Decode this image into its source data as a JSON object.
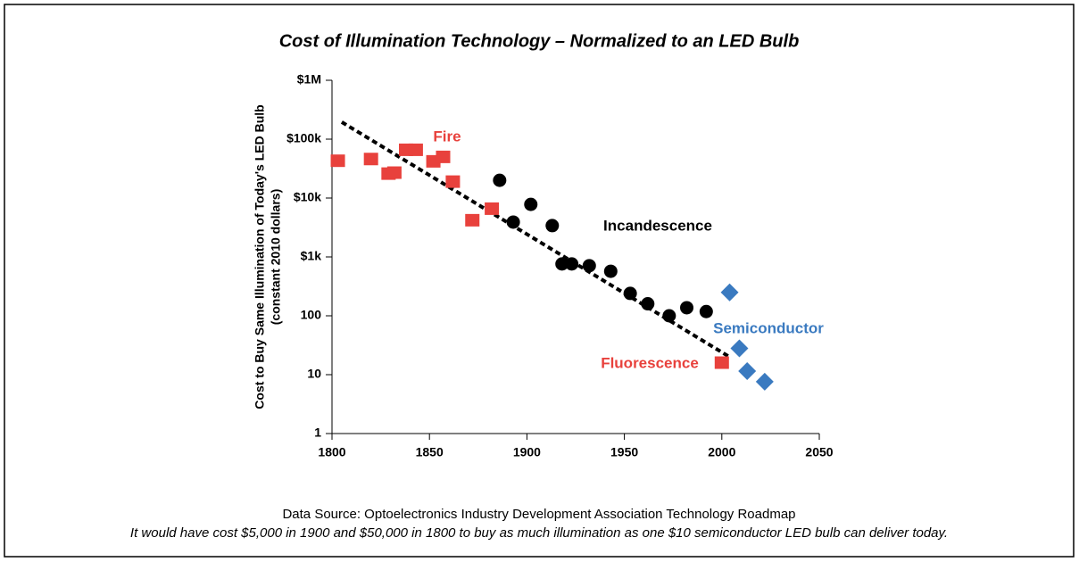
{
  "chart_data": {
    "type": "scatter",
    "title": "Cost of Illumination Technology – Normalized to an LED Bulb",
    "y_label": [
      "Cost to Buy Same Illumination of Today's LED Bulb",
      "(constant 2010 dollars)"
    ],
    "log_y": true,
    "xlim": [
      1800,
      2050
    ],
    "xticks": [
      1800,
      1850,
      1900,
      1950,
      2000,
      2050
    ],
    "ylim": [
      1,
      1000000
    ],
    "yticks": [
      1,
      10,
      100,
      {
        "value": 1000,
        "label": "$1k"
      },
      {
        "value": 10000,
        "label": "$10k"
      },
      {
        "value": 100000,
        "label": "$100k"
      },
      {
        "value": 1000000,
        "label": "$1M"
      }
    ],
    "series": [
      {
        "name": "Fire",
        "color": "#e8413c",
        "marker": "square",
        "x": [
          1803,
          1820,
          1829,
          1832,
          1838,
          1843,
          1852,
          1857,
          1862,
          1872,
          1882
        ],
        "values": [
          43000,
          46000,
          26000,
          27000,
          66000,
          66000,
          42000,
          50000,
          19000,
          4200,
          6600
        ]
      },
      {
        "name": "Incandescence",
        "color": "#000000",
        "marker": "circle",
        "x": [
          1886,
          1893,
          1902,
          1913,
          1918,
          1923,
          1932,
          1943,
          1953,
          1962,
          1973,
          1982,
          1992
        ],
        "values": [
          20000,
          3900,
          7800,
          3400,
          760,
          760,
          710,
          570,
          240,
          160,
          100,
          137,
          118
        ]
      },
      {
        "name": "Fluorescence",
        "color": "#e8413c",
        "marker": "square",
        "x": [
          2000
        ],
        "values": [
          16
        ]
      },
      {
        "name": "Semiconductor",
        "color": "#3a7ac0",
        "marker": "diamond",
        "x": [
          2004,
          2009,
          2013,
          2022
        ],
        "values": [
          250,
          28,
          11.5,
          7.6
        ]
      }
    ],
    "trend": {
      "x": [
        1805,
        2004
      ],
      "values": [
        195000,
        20
      ],
      "dashed": true,
      "color": "#000000"
    },
    "source": "Data Source: Optoelectronics Industry Development Association Technology Roadmap",
    "note": "It would have cost $5,000 in 1900 and $50,000 in 1800 to buy as much illumination as one $10 semiconductor LED bulb can deliver today."
  }
}
